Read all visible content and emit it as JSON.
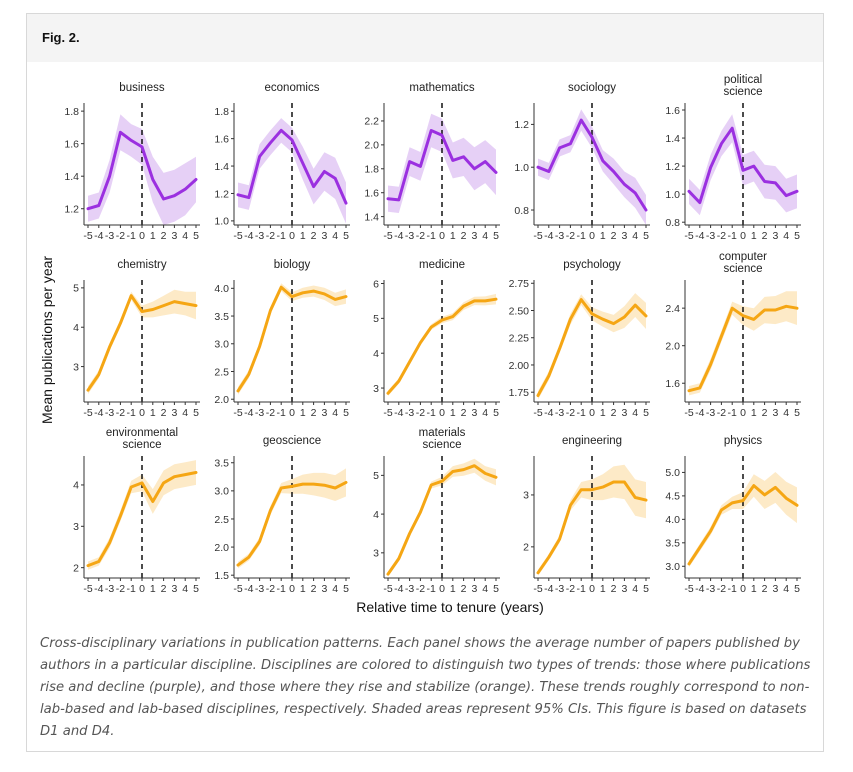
{
  "figure": {
    "label": "Fig. 2.",
    "caption": "Cross-disciplinary variations in publication patterns. Each panel shows the average number of papers published by authors in a particular discipline. Disciplines are colored to distinguish two types of trends: those where publications rise and decline (purple), and those where they rise and stabilize (orange). These trends roughly correspond to non-lab-based and lab-based disciplines, respectively. Shaded areas represent 95% CIs. This figure is based on datasets D1 and D4."
  },
  "colors": {
    "purple": "#9b30e0",
    "purple_band": "#e2c8f5",
    "orange": "#f5a614",
    "orange_band": "#fde6bd",
    "axis": "#333333"
  },
  "chart_data": {
    "type": "line",
    "xlabel": "Relative time to tenure (years)",
    "ylabel": "Mean publications per year",
    "x": [
      -5,
      -4,
      -3,
      -2,
      -1,
      0,
      1,
      2,
      3,
      4,
      5
    ],
    "x_tick_labels": [
      "-5",
      "-4",
      "-3",
      "-2",
      "-1",
      "0",
      "1",
      "2",
      "3",
      "4",
      "5"
    ],
    "vertical_reference": 0,
    "panels": [
      {
        "title": [
          "business"
        ],
        "color": "purple",
        "ylim": [
          1.1,
          1.85
        ],
        "yticks": [
          1.2,
          1.4,
          1.6,
          1.8
        ],
        "ytick_labels": [
          "1.2",
          "1.4",
          "1.6",
          "1.8"
        ],
        "values": [
          1.2,
          1.22,
          1.4,
          1.67,
          1.62,
          1.58,
          1.38,
          1.26,
          1.28,
          1.32,
          1.38
        ],
        "lower": [
          1.12,
          1.14,
          1.3,
          1.56,
          1.52,
          1.47,
          1.24,
          1.1,
          1.12,
          1.16,
          1.24
        ],
        "upper": [
          1.28,
          1.3,
          1.5,
          1.78,
          1.72,
          1.69,
          1.52,
          1.42,
          1.44,
          1.48,
          1.52
        ]
      },
      {
        "title": [
          "economics"
        ],
        "color": "purple",
        "ylim": [
          0.97,
          1.86
        ],
        "yticks": [
          1.0,
          1.2,
          1.4,
          1.6,
          1.8
        ],
        "ytick_labels": [
          "1.0",
          "1.2",
          "1.4",
          "1.6",
          "1.8"
        ],
        "values": [
          1.19,
          1.17,
          1.47,
          1.57,
          1.66,
          1.59,
          1.42,
          1.25,
          1.36,
          1.31,
          1.13
        ],
        "lower": [
          1.1,
          1.08,
          1.38,
          1.48,
          1.57,
          1.5,
          1.3,
          1.12,
          1.22,
          1.16,
          0.98
        ],
        "upper": [
          1.28,
          1.26,
          1.56,
          1.66,
          1.75,
          1.68,
          1.54,
          1.38,
          1.5,
          1.46,
          1.28
        ]
      },
      {
        "title": [
          "mathematics"
        ],
        "color": "purple",
        "ylim": [
          1.33,
          2.35
        ],
        "yticks": [
          1.4,
          1.6,
          1.8,
          2.0,
          2.2
        ],
        "ytick_labels": [
          "1.4",
          "1.6",
          "1.8",
          "2.0",
          "2.2"
        ],
        "values": [
          1.55,
          1.54,
          1.86,
          1.82,
          2.12,
          2.08,
          1.87,
          1.9,
          1.8,
          1.86,
          1.77
        ],
        "lower": [
          1.44,
          1.43,
          1.74,
          1.7,
          1.98,
          1.94,
          1.72,
          1.74,
          1.62,
          1.68,
          1.58
        ],
        "upper": [
          1.66,
          1.65,
          1.98,
          1.94,
          2.26,
          2.22,
          2.02,
          2.06,
          1.98,
          2.04,
          1.96
        ]
      },
      {
        "title": [
          "sociology"
        ],
        "color": "purple",
        "ylim": [
          0.73,
          1.3
        ],
        "yticks": [
          0.8,
          1.0,
          1.2
        ],
        "ytick_labels": [
          "0.8",
          "1.0",
          "1.2"
        ],
        "values": [
          1.0,
          0.98,
          1.09,
          1.11,
          1.22,
          1.14,
          1.03,
          0.98,
          0.92,
          0.88,
          0.8
        ],
        "lower": [
          0.96,
          0.94,
          1.05,
          1.07,
          1.17,
          1.09,
          0.98,
          0.92,
          0.86,
          0.81,
          0.73
        ],
        "upper": [
          1.04,
          1.02,
          1.13,
          1.15,
          1.27,
          1.19,
          1.08,
          1.04,
          0.98,
          0.95,
          0.87
        ]
      },
      {
        "title": [
          "political",
          "science"
        ],
        "color": "purple",
        "ylim": [
          0.78,
          1.65
        ],
        "yticks": [
          0.8,
          1.0,
          1.2,
          1.4,
          1.6
        ],
        "ytick_labels": [
          "0.8",
          "1.0",
          "1.2",
          "1.4",
          "1.6"
        ],
        "values": [
          1.02,
          0.94,
          1.19,
          1.36,
          1.47,
          1.17,
          1.2,
          1.09,
          1.08,
          0.99,
          1.02
        ],
        "lower": [
          0.93,
          0.85,
          1.1,
          1.27,
          1.37,
          1.06,
          1.09,
          0.97,
          0.96,
          0.87,
          0.9
        ],
        "upper": [
          1.11,
          1.03,
          1.28,
          1.45,
          1.57,
          1.28,
          1.31,
          1.21,
          1.2,
          1.11,
          1.14
        ]
      },
      {
        "title": [
          "chemistry"
        ],
        "color": "orange",
        "ylim": [
          2.1,
          5.2
        ],
        "yticks": [
          3,
          4,
          5
        ],
        "ytick_labels": [
          "3",
          "4",
          "5"
        ],
        "values": [
          2.4,
          2.8,
          3.5,
          4.1,
          4.8,
          4.4,
          4.45,
          4.55,
          4.65,
          4.6,
          4.55
        ],
        "lower": [
          2.3,
          2.7,
          3.4,
          4.0,
          4.7,
          4.25,
          4.25,
          4.3,
          4.35,
          4.3,
          4.2
        ],
        "upper": [
          2.5,
          2.9,
          3.6,
          4.2,
          4.9,
          4.55,
          4.65,
          4.8,
          4.95,
          4.9,
          4.9
        ]
      },
      {
        "title": [
          "biology"
        ],
        "color": "orange",
        "ylim": [
          1.95,
          4.15
        ],
        "yticks": [
          2.0,
          2.5,
          3.0,
          3.5,
          4.0
        ],
        "ytick_labels": [
          "2.0",
          "2.5",
          "3.0",
          "3.5",
          "4.0"
        ],
        "values": [
          2.15,
          2.45,
          2.95,
          3.6,
          4.02,
          3.85,
          3.92,
          3.95,
          3.9,
          3.8,
          3.85
        ],
        "lower": [
          2.08,
          2.38,
          2.88,
          3.53,
          3.95,
          3.77,
          3.83,
          3.85,
          3.79,
          3.68,
          3.72
        ],
        "upper": [
          2.22,
          2.52,
          3.02,
          3.67,
          4.09,
          3.93,
          4.01,
          4.05,
          4.01,
          3.92,
          3.98
        ]
      },
      {
        "title": [
          "medicine"
        ],
        "color": "orange",
        "ylim": [
          2.6,
          6.1
        ],
        "yticks": [
          3,
          4,
          5,
          6
        ],
        "ytick_labels": [
          "3",
          "4",
          "5",
          "6"
        ],
        "values": [
          2.85,
          3.2,
          3.75,
          4.3,
          4.75,
          4.95,
          5.05,
          5.35,
          5.5,
          5.5,
          5.55
        ],
        "lower": [
          2.77,
          3.12,
          3.67,
          4.22,
          4.67,
          4.86,
          4.95,
          5.24,
          5.38,
          5.37,
          5.4
        ],
        "upper": [
          2.93,
          3.28,
          3.83,
          4.38,
          4.83,
          5.04,
          5.15,
          5.46,
          5.62,
          5.63,
          5.7
        ]
      },
      {
        "title": [
          "psychology"
        ],
        "color": "orange",
        "ylim": [
          1.66,
          2.78
        ],
        "yticks": [
          1.75,
          2.0,
          2.25,
          2.5,
          2.75
        ],
        "ytick_labels": [
          "1.75",
          "2.00",
          "2.25",
          "2.50",
          "2.75"
        ],
        "values": [
          1.72,
          1.9,
          2.15,
          2.42,
          2.6,
          2.47,
          2.42,
          2.38,
          2.44,
          2.55,
          2.45
        ],
        "lower": [
          1.68,
          1.86,
          2.11,
          2.37,
          2.55,
          2.41,
          2.35,
          2.3,
          2.34,
          2.44,
          2.33
        ],
        "upper": [
          1.76,
          1.94,
          2.19,
          2.47,
          2.65,
          2.53,
          2.49,
          2.46,
          2.54,
          2.66,
          2.57
        ]
      },
      {
        "title": [
          "computer",
          "science"
        ],
        "color": "orange",
        "ylim": [
          1.4,
          2.7
        ],
        "yticks": [
          1.6,
          2.0,
          2.4
        ],
        "ytick_labels": [
          "1.6",
          "2.0",
          "2.4"
        ],
        "values": [
          1.52,
          1.55,
          1.8,
          2.1,
          2.4,
          2.32,
          2.28,
          2.38,
          2.38,
          2.42,
          2.4
        ],
        "lower": [
          1.47,
          1.5,
          1.74,
          2.04,
          2.33,
          2.22,
          2.16,
          2.24,
          2.23,
          2.26,
          2.22
        ],
        "upper": [
          1.57,
          1.6,
          1.86,
          2.16,
          2.47,
          2.42,
          2.4,
          2.52,
          2.53,
          2.58,
          2.58
        ]
      },
      {
        "title": [
          "environmental",
          "science"
        ],
        "color": "orange",
        "ylim": [
          1.75,
          4.7
        ],
        "yticks": [
          2,
          3,
          4
        ],
        "ytick_labels": [
          "2",
          "3",
          "4"
        ],
        "values": [
          2.05,
          2.15,
          2.6,
          3.25,
          3.95,
          4.05,
          3.6,
          4.05,
          4.2,
          4.25,
          4.3
        ],
        "lower": [
          1.95,
          2.05,
          2.48,
          3.12,
          3.8,
          3.85,
          3.3,
          3.75,
          3.9,
          3.95,
          4.0
        ],
        "upper": [
          2.15,
          2.25,
          2.72,
          3.38,
          4.1,
          4.25,
          3.9,
          4.35,
          4.5,
          4.55,
          4.6
        ]
      },
      {
        "title": [
          "geoscience"
        ],
        "color": "orange",
        "ylim": [
          1.45,
          3.62
        ],
        "yticks": [
          1.5,
          2.0,
          2.5,
          3.0,
          3.5
        ],
        "ytick_labels": [
          "1.5",
          "2.0",
          "2.5",
          "3.0",
          "3.5"
        ],
        "values": [
          1.68,
          1.82,
          2.1,
          2.65,
          3.05,
          3.08,
          3.12,
          3.12,
          3.1,
          3.05,
          3.15
        ],
        "lower": [
          1.62,
          1.76,
          2.03,
          2.57,
          2.96,
          2.95,
          2.95,
          2.92,
          2.88,
          2.82,
          2.9
        ],
        "upper": [
          1.74,
          1.88,
          2.17,
          2.73,
          3.14,
          3.21,
          3.29,
          3.32,
          3.32,
          3.28,
          3.4
        ]
      },
      {
        "title": [
          "materials",
          "science"
        ],
        "color": "orange",
        "ylim": [
          2.35,
          5.5
        ],
        "yticks": [
          3,
          4,
          5
        ],
        "ytick_labels": [
          "3",
          "4",
          "5"
        ],
        "values": [
          2.45,
          2.85,
          3.5,
          4.05,
          4.75,
          4.85,
          5.1,
          5.15,
          5.25,
          5.05,
          4.95
        ],
        "lower": [
          2.38,
          2.78,
          3.42,
          3.97,
          4.66,
          4.74,
          4.96,
          4.99,
          5.07,
          4.86,
          4.74
        ],
        "upper": [
          2.52,
          2.92,
          3.58,
          4.13,
          4.84,
          4.96,
          5.24,
          5.31,
          5.43,
          5.24,
          5.16
        ]
      },
      {
        "title": [
          "engineering"
        ],
        "color": "orange",
        "ylim": [
          1.4,
          3.75
        ],
        "yticks": [
          2,
          3
        ],
        "ytick_labels": [
          "2",
          "3"
        ],
        "values": [
          1.5,
          1.8,
          2.15,
          2.8,
          3.1,
          3.1,
          3.15,
          3.25,
          3.25,
          2.95,
          2.9
        ],
        "lower": [
          1.44,
          1.74,
          2.08,
          2.7,
          2.95,
          2.9,
          2.9,
          2.95,
          2.92,
          2.6,
          2.55
        ],
        "upper": [
          1.56,
          1.86,
          2.22,
          2.9,
          3.25,
          3.3,
          3.4,
          3.55,
          3.58,
          3.3,
          3.25
        ]
      },
      {
        "title": [
          "physics"
        ],
        "color": "orange",
        "ylim": [
          2.75,
          5.35
        ],
        "yticks": [
          3.0,
          3.5,
          4.0,
          4.5,
          5.0
        ],
        "ytick_labels": [
          "3.0",
          "3.5",
          "4.0",
          "4.5",
          "5.0"
        ],
        "values": [
          3.05,
          3.4,
          3.75,
          4.2,
          4.35,
          4.4,
          4.72,
          4.52,
          4.68,
          4.45,
          4.3
        ],
        "lower": [
          2.98,
          3.32,
          3.66,
          4.1,
          4.22,
          4.22,
          4.48,
          4.22,
          4.35,
          4.1,
          3.92
        ],
        "upper": [
          3.12,
          3.48,
          3.84,
          4.3,
          4.48,
          4.58,
          4.96,
          4.82,
          5.01,
          4.8,
          4.68
        ]
      }
    ]
  }
}
